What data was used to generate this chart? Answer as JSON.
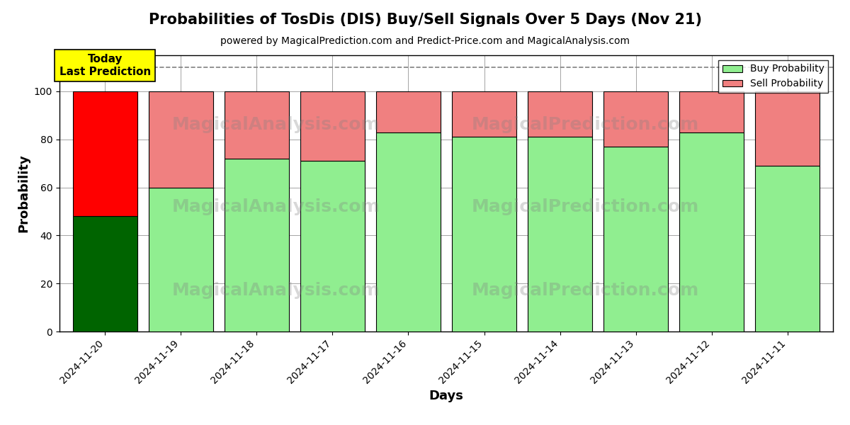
{
  "title": "Probabilities of TosDis (DIS) Buy/Sell Signals Over 5 Days (Nov 21)",
  "subtitle": "powered by MagicalPrediction.com and Predict-Price.com and MagicalAnalysis.com",
  "xlabel": "Days",
  "ylabel": "Probability",
  "dates": [
    "2024-11-20",
    "2024-11-19",
    "2024-11-18",
    "2024-11-17",
    "2024-11-16",
    "2024-11-15",
    "2024-11-14",
    "2024-11-13",
    "2024-11-12",
    "2024-11-11"
  ],
  "buy_values": [
    48,
    60,
    72,
    71,
    83,
    81,
    81,
    77,
    83,
    69
  ],
  "sell_values": [
    52,
    40,
    28,
    29,
    17,
    19,
    19,
    23,
    17,
    31
  ],
  "today_buy_color": "#006400",
  "today_sell_color": "#ff0000",
  "normal_buy_color": "#90EE90",
  "normal_sell_color": "#F08080",
  "today_annotation_bg": "#ffff00",
  "today_annotation_text": "Today\nLast Prediction",
  "ylim": [
    0,
    115
  ],
  "yticks": [
    0,
    20,
    40,
    60,
    80,
    100
  ],
  "dashed_line_y": 110,
  "legend_buy_label": "Buy Probability",
  "legend_sell_label": "Sell Probability",
  "watermark_texts": [
    "MagicalAnalysis.com",
    "MagicalPrediction.com"
  ],
  "bar_edge_color": "#000000",
  "bar_linewidth": 0.8,
  "bar_width": 0.85
}
